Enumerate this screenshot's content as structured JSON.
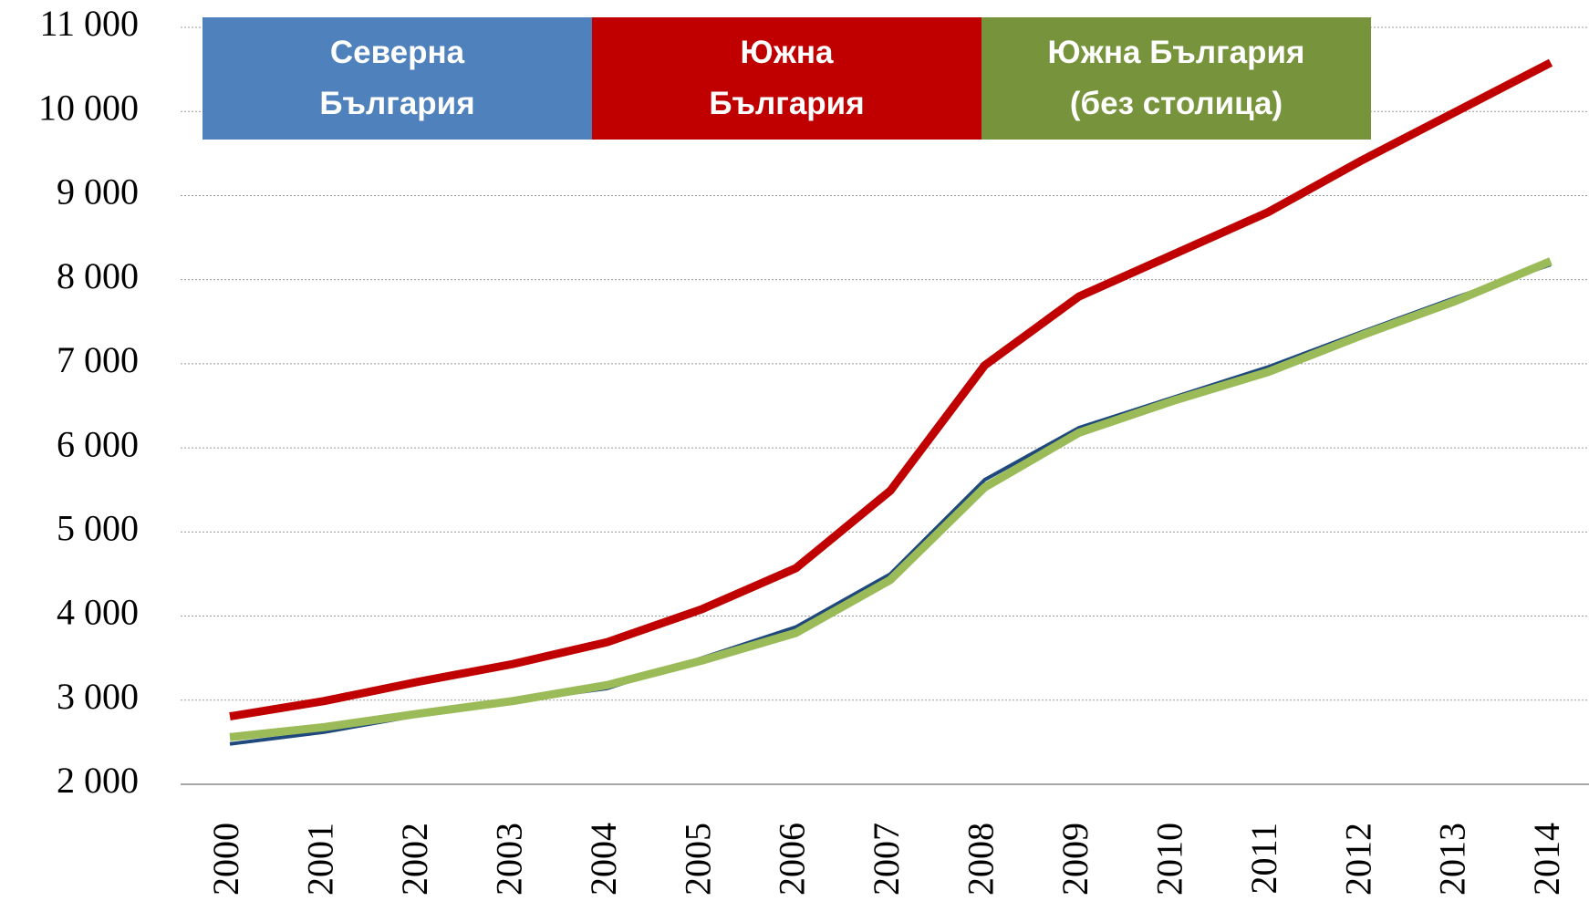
{
  "chart_data": {
    "type": "line",
    "x": [
      2000,
      2001,
      2002,
      2003,
      2004,
      2005,
      2006,
      2007,
      2008,
      2009,
      2010,
      2011,
      2012,
      2013,
      2014
    ],
    "series": [
      {
        "name": "Северна България",
        "color": "#4f81bd",
        "line_color": "#1f497d",
        "values": [
          2480,
          2620,
          2820,
          2990,
          3140,
          3500,
          3870,
          4500,
          5620,
          6240,
          6600,
          6960,
          7380,
          7790,
          8180
        ]
      },
      {
        "name": "Южна България",
        "color": "#c00000",
        "values": [
          2807,
          2990,
          3220,
          3430,
          3690,
          4080,
          4570,
          5490,
          6980,
          7800,
          8300,
          8800,
          9420,
          10000,
          10580
        ]
      },
      {
        "name": "Южна България (без столица)",
        "color": "#77933c",
        "line_color": "#9bbb59",
        "values": [
          2560,
          2680,
          2840,
          2990,
          3180,
          3470,
          3800,
          4430,
          5530,
          6180,
          6560,
          6900,
          7340,
          7750,
          8220
        ]
      }
    ],
    "ylim": [
      2000,
      11000
    ],
    "yticks": [
      {
        "value": 2000,
        "label": "2 000"
      },
      {
        "value": 3000,
        "label": "3 000"
      },
      {
        "value": 4000,
        "label": "4 000"
      },
      {
        "value": 5000,
        "label": "5 000"
      },
      {
        "value": 6000,
        "label": "6 000"
      },
      {
        "value": 7000,
        "label": "7 000"
      },
      {
        "value": 8000,
        "label": "8 000"
      },
      {
        "value": 9000,
        "label": "9 000"
      },
      {
        "value": 10000,
        "label": "10 000"
      },
      {
        "value": 11000,
        "label": "11 000"
      }
    ],
    "xlim": [
      2000,
      2014
    ],
    "grid": true,
    "legend": "top"
  }
}
